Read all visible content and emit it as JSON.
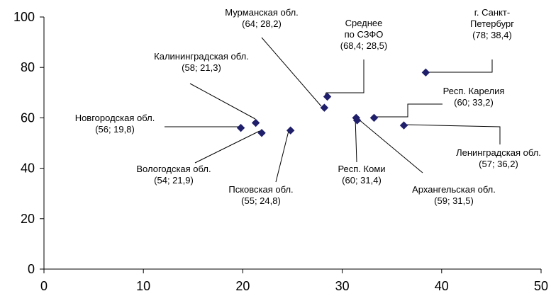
{
  "chart_data": {
    "type": "scatter",
    "title": "",
    "xlabel": "",
    "ylabel": "",
    "xlim": [
      0,
      50
    ],
    "ylim": [
      0,
      100
    ],
    "x_ticks": [
      "0",
      "10",
      "20",
      "30",
      "40",
      "50"
    ],
    "y_ticks": [
      "0",
      "20",
      "40",
      "60",
      "80",
      "100"
    ],
    "grid": false,
    "marker_color": "#1f1f6b",
    "points": [
      {
        "name": "Мурманская обл.",
        "coord_label": "(64; 28,2)",
        "x": 28.2,
        "y": 64
      },
      {
        "name": "Среднее по СЗФО",
        "name_lines": [
          "Среднее",
          "по СЗФО"
        ],
        "coord_label": "(68,4; 28,5)",
        "x": 28.5,
        "y": 68.4
      },
      {
        "name": "г. Санкт-Петербург",
        "name_lines": [
          "г. Санкт-",
          "Петербург"
        ],
        "coord_label": "(78; 38,4)",
        "x": 38.4,
        "y": 78
      },
      {
        "name": "Калининградская обл.",
        "coord_label": "(58; 21,3)",
        "x": 21.3,
        "y": 58
      },
      {
        "name": "Респ. Карелия",
        "coord_label": "(60; 33,2)",
        "x": 33.2,
        "y": 60
      },
      {
        "name": "Новгородская обл.",
        "coord_label": "(56; 19,8)",
        "x": 19.8,
        "y": 56
      },
      {
        "name": "Ленинградская обл.",
        "coord_label": "(57; 36,2)",
        "x": 36.2,
        "y": 57
      },
      {
        "name": "Вологодская обл.",
        "coord_label": "(54; 21,9)",
        "x": 21.9,
        "y": 54
      },
      {
        "name": "Псковская обл.",
        "coord_label": "(55; 24,8)",
        "x": 24.8,
        "y": 55
      },
      {
        "name": "Респ. Коми",
        "coord_label": "(60; 31,4)",
        "x": 31.4,
        "y": 60
      },
      {
        "name": "Архангельская обл.",
        "coord_label": "(59; 31,5)",
        "x": 31.5,
        "y": 59
      }
    ]
  }
}
